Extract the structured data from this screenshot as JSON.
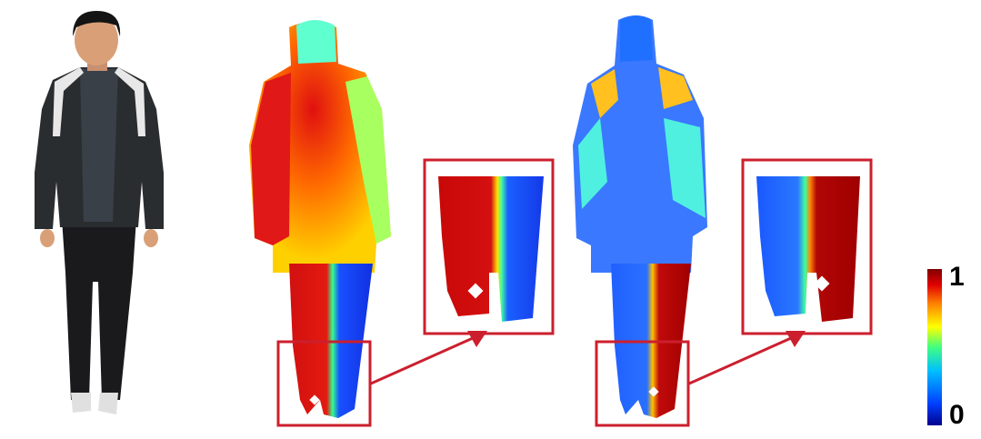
{
  "figure": {
    "panels": [
      {
        "name": "person-photo",
        "content": "photograph"
      },
      {
        "name": "heatmap-left",
        "content": "heatmap"
      },
      {
        "name": "heatmap-right",
        "content": "heatmap"
      }
    ],
    "colorbar": {
      "max_label": "1",
      "min_label": "0",
      "colormap": "jet",
      "colors": [
        "#00008f",
        "#0040ff",
        "#00c0ff",
        "#40ff80",
        "#ffff00",
        "#ff8000",
        "#e00000",
        "#800000"
      ]
    },
    "highlight_color": "#cc1f2d",
    "photo_colors": {
      "jacket": "#2a2d30",
      "sweater": "#3a4048",
      "pants": "#1a1a1c",
      "skin": "#d9a078",
      "hair": "#141414",
      "collar": "#e8e8e8",
      "shoes": "#e0e0e0"
    }
  }
}
